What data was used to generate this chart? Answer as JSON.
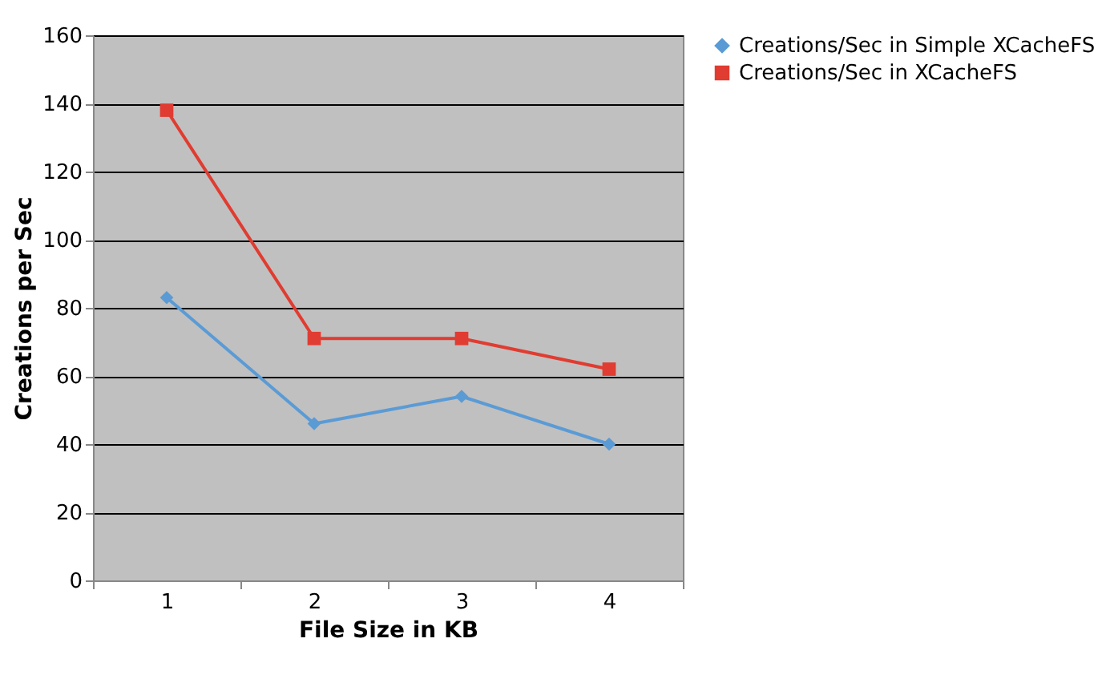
{
  "chart_data": {
    "type": "line",
    "xlabel": "File Size in KB",
    "ylabel": "Creations per Sec",
    "categories": [
      "1",
      "2",
      "3",
      "4"
    ],
    "series": [
      {
        "name": "Creations/Sec in Simple XCacheFS",
        "color": "#5b9bd5",
        "marker": "diamond",
        "values": [
          83,
          46,
          54,
          40
        ]
      },
      {
        "name": "Creations/Sec in XCacheFS",
        "color": "#e03c31",
        "marker": "square",
        "values": [
          138,
          71,
          71,
          62
        ]
      }
    ],
    "ylim": [
      0,
      160
    ],
    "yticks": [
      0,
      20,
      40,
      60,
      80,
      100,
      120,
      140,
      160
    ],
    "grid": "y",
    "legend": "right"
  }
}
